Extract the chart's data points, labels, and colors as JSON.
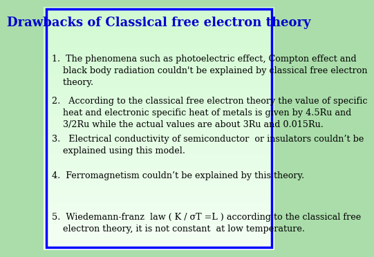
{
  "title": "Drawbacks of Classical free electron theory",
  "title_color": "#0000CC",
  "title_fontsize": 13,
  "bg_gradient_top": "#90EE90",
  "bg_gradient_bottom": "#ccffcc",
  "border_color": "#0000FF",
  "border_linewidth": 2.5,
  "text_color": "#000000",
  "body_fontsize": 9.2,
  "items": [
    "1.  The phenomena such as photoelectric effect, Compton effect and\n    black body radiation couldn't be explained by classical free electron\n    theory.",
    "2.   According to the classical free electron theory the value of specific\n    heat and electronic specific heat of metals is given by 4.5Ru and\n    3/2Ru while the actual values are about 3Ru and 0.015Ru.",
    "3.   Electrical conductivity of semiconductor  or insulators couldn’t be\n    explained using this model.",
    "4.  Ferromagnetism couldn’t be explained by this theory.",
    "5.  Wiedemann-franz  law ( K / σT =L ) according to the classical free\n    electron theory, it is not constant  at low temperature."
  ]
}
